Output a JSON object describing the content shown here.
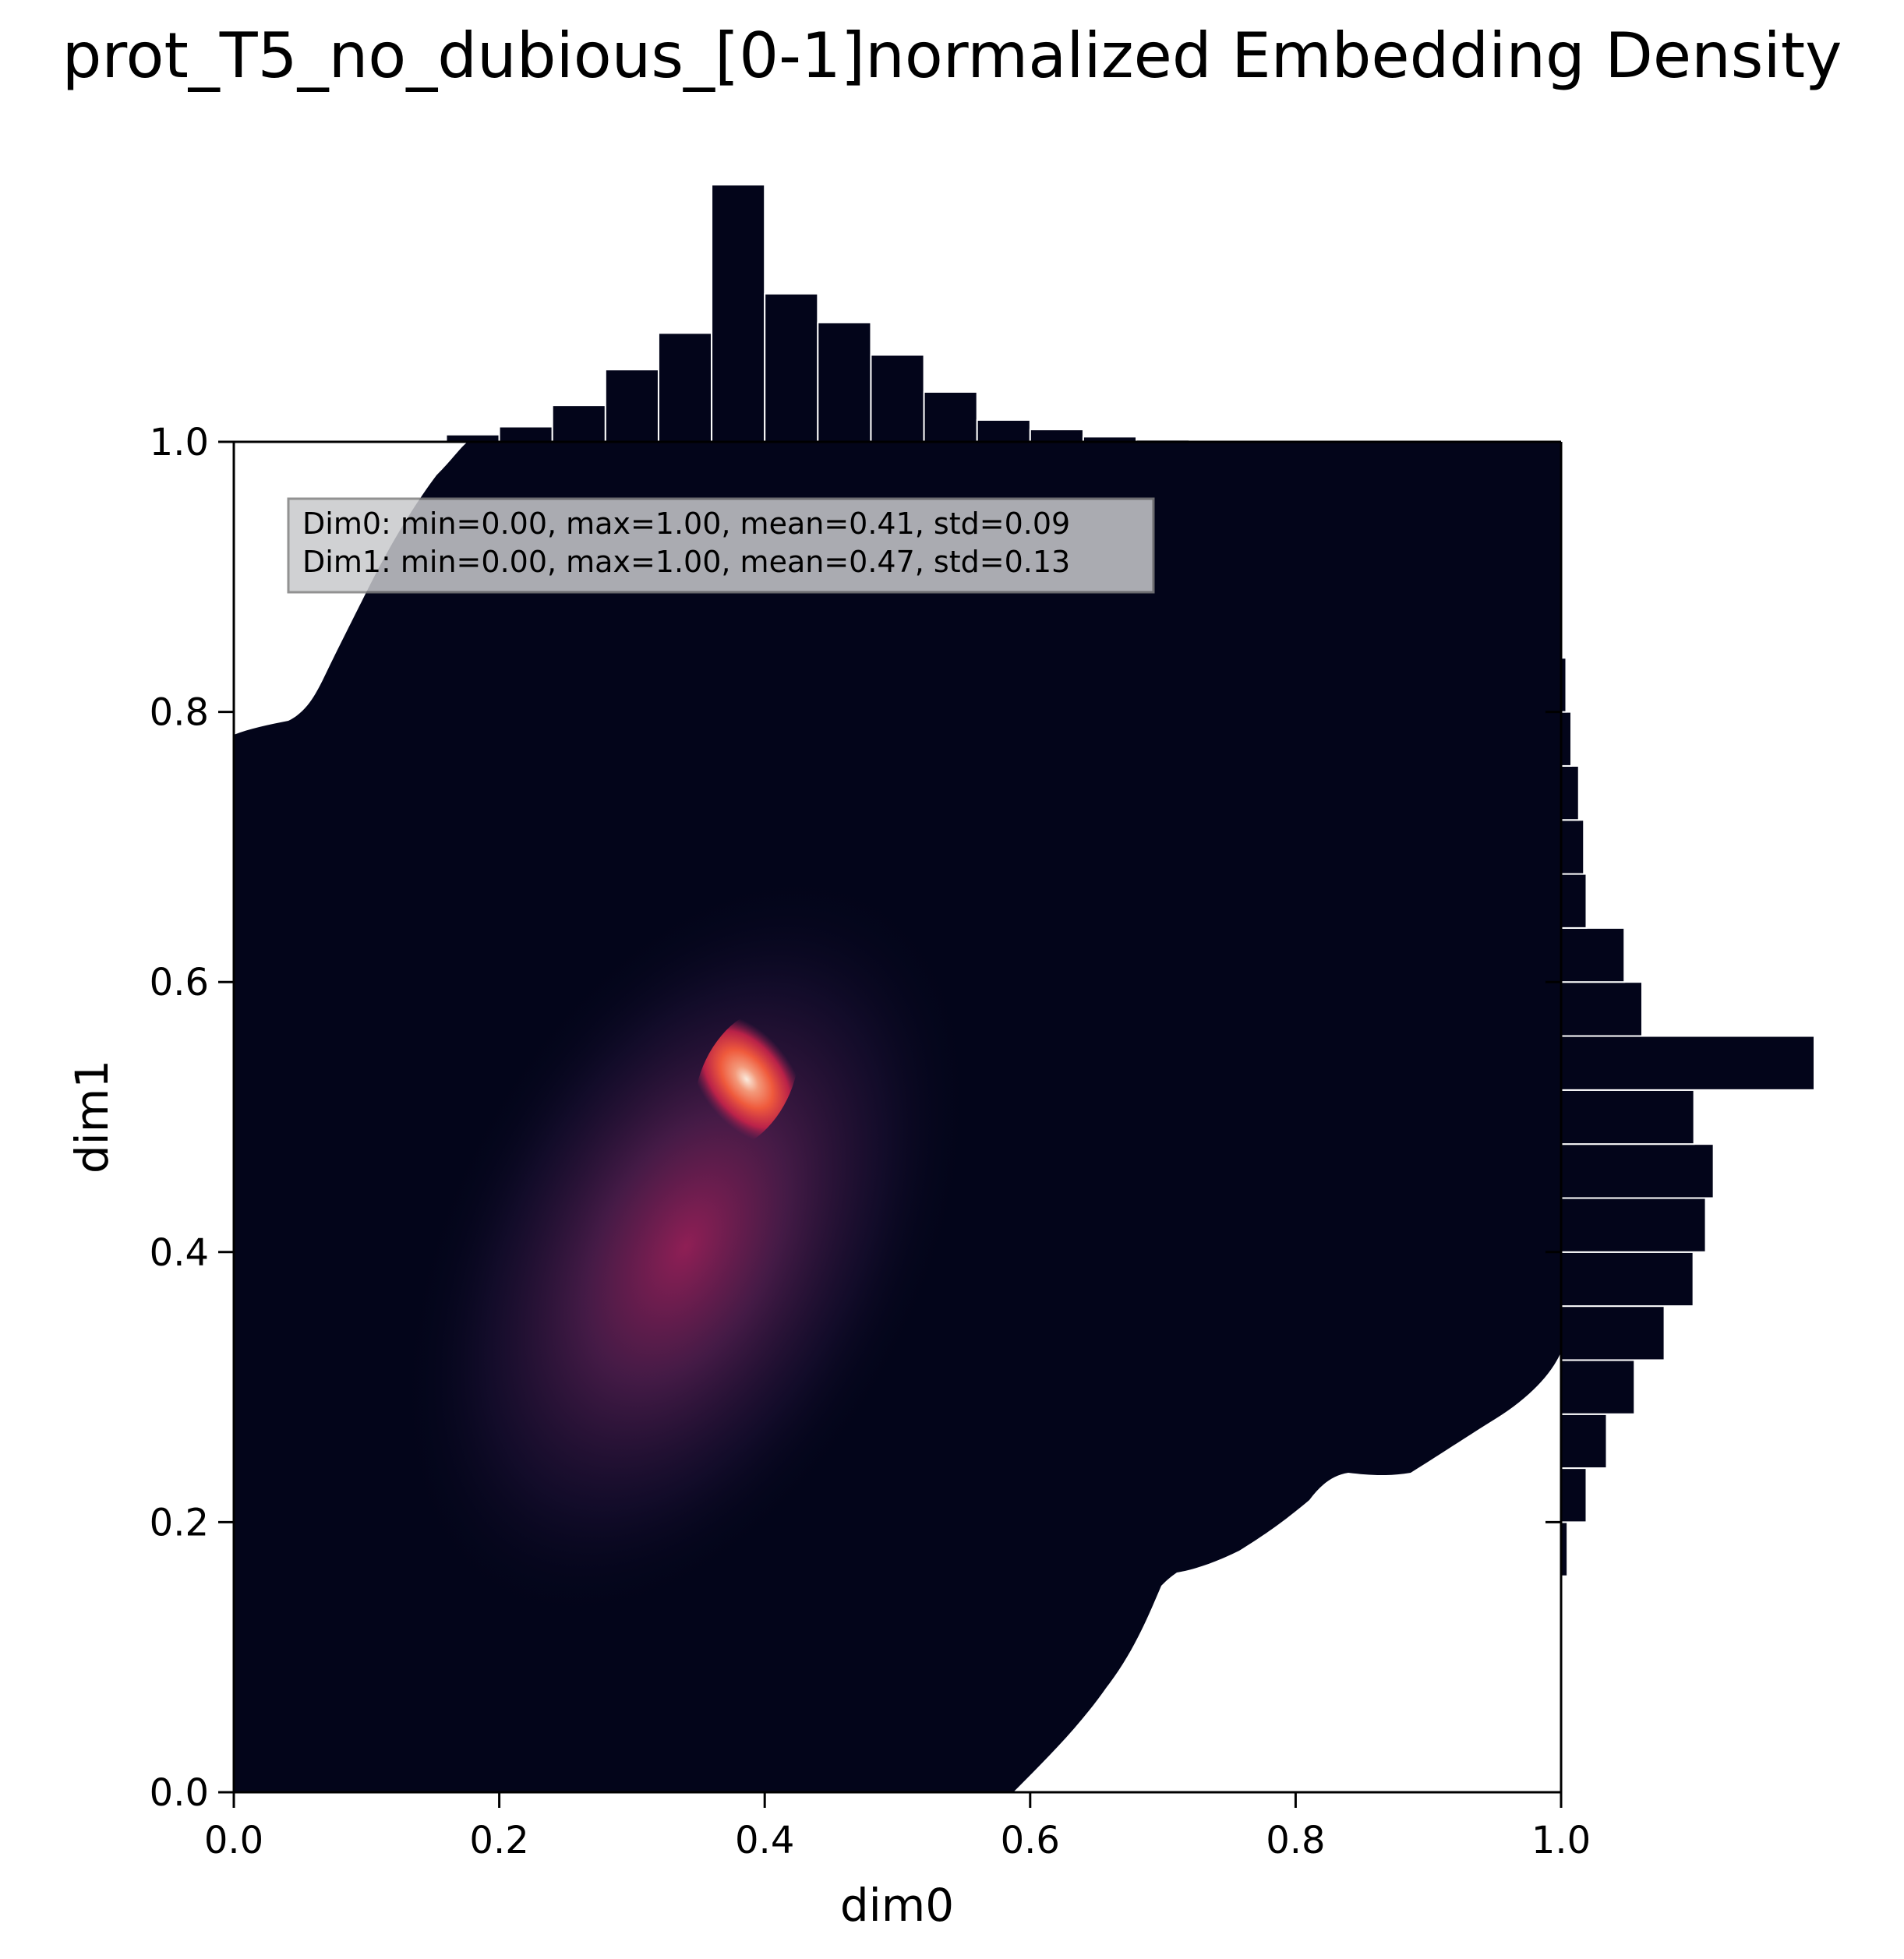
{
  "title": "prot_T5_no_dubious_[0-1]normalized Embedding Density",
  "chart_data": {
    "type": "heatmap",
    "subtype": "2d-kde-joint-plot-with-marginal-histograms",
    "xlabel": "dim0",
    "ylabel": "dim1",
    "xlim": [
      0.0,
      1.0
    ],
    "ylim": [
      0.0,
      1.0
    ],
    "xticks": [
      "0.0",
      "0.2",
      "0.4",
      "0.6",
      "0.8",
      "1.0"
    ],
    "yticks": [
      "0.0",
      "0.2",
      "0.4",
      "0.6",
      "0.8",
      "1.0"
    ],
    "grid": false,
    "colormap": [
      "#03051a",
      "#1c1033",
      "#4c1d4b",
      "#8f1f55",
      "#c8234a",
      "#ef5a3c",
      "#f3997a",
      "#f8ddd0",
      "#faebdd"
    ],
    "density_peak": {
      "x": 0.385,
      "y": 0.52
    },
    "stats_lines": [
      "Dim0: min=0.00, max=1.00, mean=0.41, std=0.09",
      "Dim1: min=0.00, max=1.00, mean=0.47, std=0.13"
    ],
    "marginal_x_hist": {
      "bin_edges": [
        0.08,
        0.12,
        0.16,
        0.2,
        0.24,
        0.28,
        0.32,
        0.36,
        0.4,
        0.44,
        0.48,
        0.52,
        0.56,
        0.6,
        0.64,
        0.68,
        0.72
      ],
      "counts": [
        0.001,
        0.007,
        0.028,
        0.059,
        0.142,
        0.281,
        0.423,
        1.0,
        0.576,
        0.464,
        0.338,
        0.194,
        0.085,
        0.048,
        0.02,
        0.008
      ]
    },
    "marginal_y_hist": {
      "bin_edges": [
        0.16,
        0.2,
        0.24,
        0.28,
        0.32,
        0.36,
        0.4,
        0.44,
        0.48,
        0.52,
        0.56,
        0.6,
        0.64,
        0.68,
        0.72,
        0.76,
        0.8,
        0.84
      ],
      "counts": [
        0.025,
        0.1,
        0.18,
        0.29,
        0.408,
        0.522,
        0.571,
        0.602,
        0.525,
        1.0,
        0.32,
        0.25,
        0.1,
        0.09,
        0.07,
        0.04,
        0.02
      ]
    }
  },
  "colors": {
    "background": "#ffffff",
    "density_dark": "#03051a",
    "hist_bar": "#03051a",
    "stats_box_fill": "#c8c9cc",
    "stats_box_edge": "#808080"
  }
}
